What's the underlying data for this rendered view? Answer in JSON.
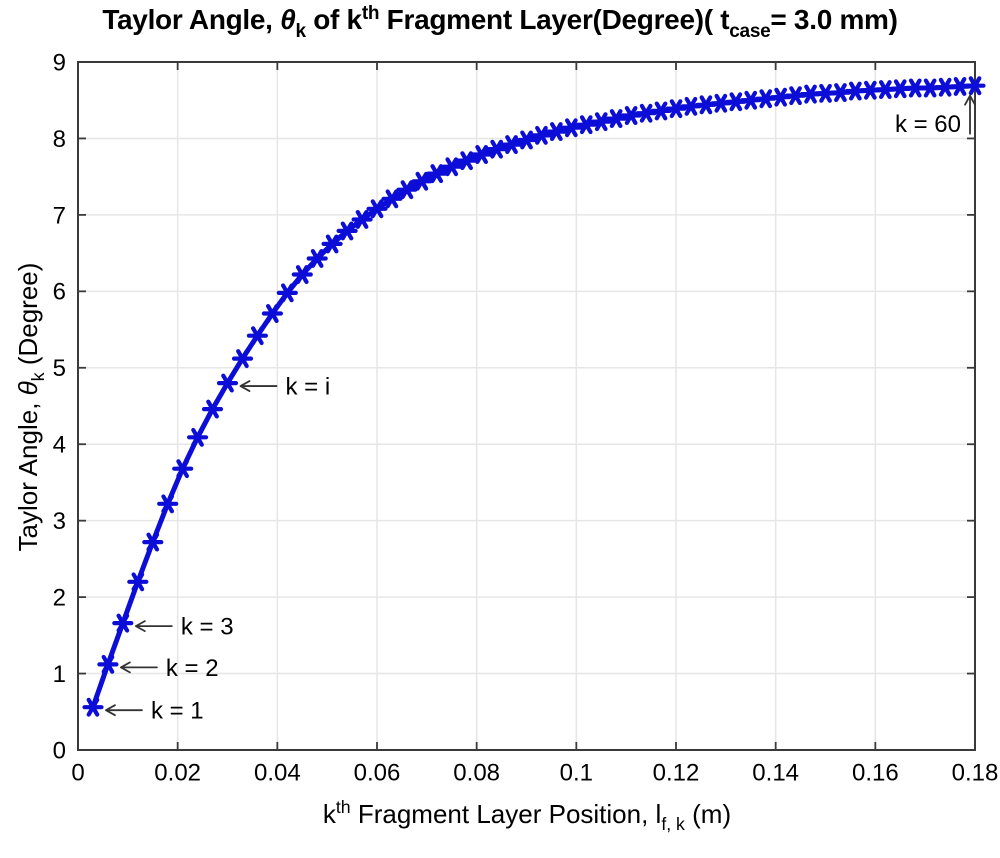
{
  "colors": {
    "series_blue": "#0d0dd8",
    "axis_box": "#3a3a3a",
    "grid": "#e6e6e6",
    "tick_label": "#000000",
    "annotation_arrow": "#333333"
  },
  "title_segments": [
    {
      "t": "Taylor Angle, ",
      "s": "n"
    },
    {
      "t": "θ",
      "s": "i"
    },
    {
      "t": "k",
      "s": "sub"
    },
    {
      "t": " of k",
      "s": "n"
    },
    {
      "t": "th",
      "s": "sup"
    },
    {
      "t": " Fragment Layer(Degree)( t",
      "s": "n"
    },
    {
      "t": "case",
      "s": "sub"
    },
    {
      "t": "= 3.0 mm)",
      "s": "n"
    }
  ],
  "xlabel_segments": [
    {
      "t": "k",
      "s": "n"
    },
    {
      "t": "th",
      "s": "sup"
    },
    {
      "t": " Fragment Layer Position, l",
      "s": "n"
    },
    {
      "t": "f, k",
      "s": "sub"
    },
    {
      "t": " (m)",
      "s": "n"
    }
  ],
  "ylabel_segments": [
    {
      "t": "Taylor Angle, ",
      "s": "n"
    },
    {
      "t": "θ",
      "s": "i"
    },
    {
      "t": "k",
      "s": "sub"
    },
    {
      "t": " (Degree)",
      "s": "n"
    }
  ],
  "chart_data": {
    "type": "line",
    "title": "Taylor Angle, theta_k of k-th Fragment Layer (Degree) (t_case = 3.0 mm)",
    "xlabel": "k-th Fragment Layer Position, l_f,k (m)",
    "ylabel": "Taylor Angle, theta_k (Degree)",
    "xlim": [
      0,
      0.18
    ],
    "ylim": [
      0,
      9
    ],
    "grid": true,
    "xticks": {
      "values": [
        0,
        0.02,
        0.04,
        0.06,
        0.08,
        0.1,
        0.12,
        0.14,
        0.16,
        0.18
      ],
      "labels": [
        "0",
        "0.02",
        "0.04",
        "0.06",
        "0.08",
        "0.1",
        "0.12",
        "0.14",
        "0.16",
        "0.18"
      ]
    },
    "yticks": {
      "values": [
        0,
        1,
        2,
        3,
        4,
        5,
        6,
        7,
        8,
        9
      ],
      "labels": [
        "0",
        "1",
        "2",
        "3",
        "4",
        "5",
        "6",
        "7",
        "8",
        "9"
      ]
    },
    "series": [
      {
        "name": "theta_k",
        "marker": "asterisk",
        "color": "#0d0dd8",
        "x": [
          0.003,
          0.006,
          0.009,
          0.012,
          0.015,
          0.018,
          0.021,
          0.024,
          0.027,
          0.03,
          0.033,
          0.036,
          0.039,
          0.042,
          0.045,
          0.048,
          0.051,
          0.054,
          0.057,
          0.06,
          0.063,
          0.066,
          0.069,
          0.072,
          0.075,
          0.078,
          0.081,
          0.084,
          0.087,
          0.09,
          0.093,
          0.096,
          0.099,
          0.102,
          0.105,
          0.108,
          0.111,
          0.114,
          0.117,
          0.12,
          0.123,
          0.126,
          0.129,
          0.132,
          0.135,
          0.138,
          0.141,
          0.144,
          0.147,
          0.15,
          0.153,
          0.156,
          0.159,
          0.162,
          0.165,
          0.168,
          0.171,
          0.174,
          0.177,
          0.18
        ],
        "y": [
          0.56,
          1.12,
          1.66,
          2.2,
          2.72,
          3.22,
          3.68,
          4.09,
          4.46,
          4.8,
          5.12,
          5.42,
          5.71,
          5.98,
          6.22,
          6.43,
          6.62,
          6.79,
          6.94,
          7.08,
          7.21,
          7.33,
          7.44,
          7.54,
          7.63,
          7.71,
          7.79,
          7.86,
          7.92,
          7.98,
          8.04,
          8.09,
          8.14,
          8.18,
          8.22,
          8.26,
          8.3,
          8.33,
          8.36,
          8.39,
          8.42,
          8.44,
          8.46,
          8.48,
          8.5,
          8.52,
          8.54,
          8.56,
          8.58,
          8.59,
          8.6,
          8.62,
          8.63,
          8.64,
          8.65,
          8.66,
          8.66,
          8.67,
          8.68,
          8.69
        ]
      }
    ],
    "annotations": [
      {
        "text": "k = 1",
        "arrow": "left",
        "target_k": 1
      },
      {
        "text": "k = 2",
        "arrow": "left",
        "target_k": 2
      },
      {
        "text": "k = 3",
        "arrow": "left",
        "target_k": 3
      },
      {
        "text": "k = i",
        "arrow": "left",
        "target_k": 10
      },
      {
        "text": "k = 60",
        "arrow": "up",
        "target_k": 60
      }
    ]
  }
}
